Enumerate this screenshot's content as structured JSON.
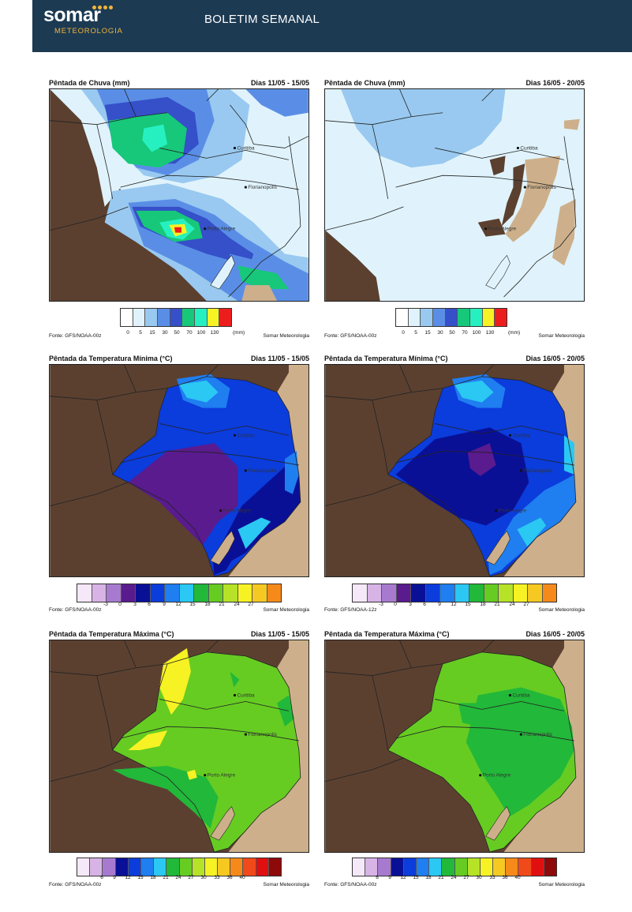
{
  "header": {
    "logo_word": "somar",
    "logo_sub": "METEOROLOGIA",
    "title": "BOLETIM SEMANAL"
  },
  "cities": [
    "Curitiba",
    "Florianopolis",
    "Porto Alegre"
  ],
  "panels": [
    {
      "title": "Pêntada de Chuva (mm)",
      "dates": "Dias 11/05 - 15/05",
      "source": "Fonte: GFS/NOAA-00z",
      "credit": "Somar Meteorologia",
      "legend": "rain"
    },
    {
      "title": "Pêntada de Chuva (mm)",
      "dates": "Dias 16/05 - 20/05",
      "source": "Fonte: GFS/NOAA-00z",
      "credit": "Somar Meteorologia",
      "legend": "rain"
    },
    {
      "title": "Pêntada da Temperatura Mínima (°C)",
      "dates": "Dias 11/05 - 15/05",
      "source": "Fonte: GFS/NOAA-00z",
      "credit": "Somar Meteorologia",
      "legend": "tmin"
    },
    {
      "title": "Pêntada da Temperatura Mínima (°C)",
      "dates": "Dias 16/05 - 20/05",
      "source": "Fonte: GFS/NOAA-12z",
      "credit": "Somar Meteorologia",
      "legend": "tmin"
    },
    {
      "title": "Pêntada da Temperatura Máxima (°C)",
      "dates": "Dias 11/05 - 15/05",
      "source": "Fonte: GFS/NOAA-00z",
      "credit": "Somar Meteorologia",
      "legend": "tmax"
    },
    {
      "title": "Pêntada da Temperatura Máxima (°C)",
      "dates": "Dias 16/05 - 20/05",
      "source": "Fonte: GFS/NOAA-00z",
      "credit": "Somar Meteorologia",
      "legend": "tmax"
    }
  ],
  "legends": {
    "rain": {
      "colors": [
        "#ffffff",
        "#e0f3fc",
        "#99c9f0",
        "#5a8ee6",
        "#3550c8",
        "#17c87a",
        "#27f0c0",
        "#f6f224",
        "#ec1d1d"
      ],
      "ticks": [
        "0",
        "5",
        "15",
        "30",
        "50",
        "70",
        "100",
        "130"
      ],
      "unit": "(mm)"
    },
    "tmin": {
      "colors": [
        "#f5e8f8",
        "#d8b4e6",
        "#a77ad0",
        "#5a1b8e",
        "#0a1096",
        "#0b3cdc",
        "#1f7ef0",
        "#2ac8f2",
        "#22b83a",
        "#66cc22",
        "#b6e228",
        "#f6f223",
        "#f6c822",
        "#f58a1a"
      ],
      "ticks": [
        "-3",
        "0",
        "3",
        "6",
        "9",
        "12",
        "15",
        "18",
        "21",
        "24",
        "27"
      ]
    },
    "tmax": {
      "colors": [
        "#f5e8f8",
        "#d8b4e6",
        "#a77ad0",
        "#0a1096",
        "#0b3cdc",
        "#1f7ef0",
        "#2ac8f2",
        "#22b83a",
        "#66cc22",
        "#b6e228",
        "#f6f223",
        "#f6c822",
        "#f58a1a",
        "#f04a1a",
        "#e01010",
        "#8e0a0a"
      ],
      "ticks": [
        "6",
        "9",
        "12",
        "15",
        "18",
        "21",
        "24",
        "27",
        "30",
        "33",
        "36",
        "40"
      ]
    }
  },
  "map_colors": {
    "land": "#5b4030",
    "ocean": "#cdb08b",
    "region_rain_base": "#e0f3fc"
  }
}
